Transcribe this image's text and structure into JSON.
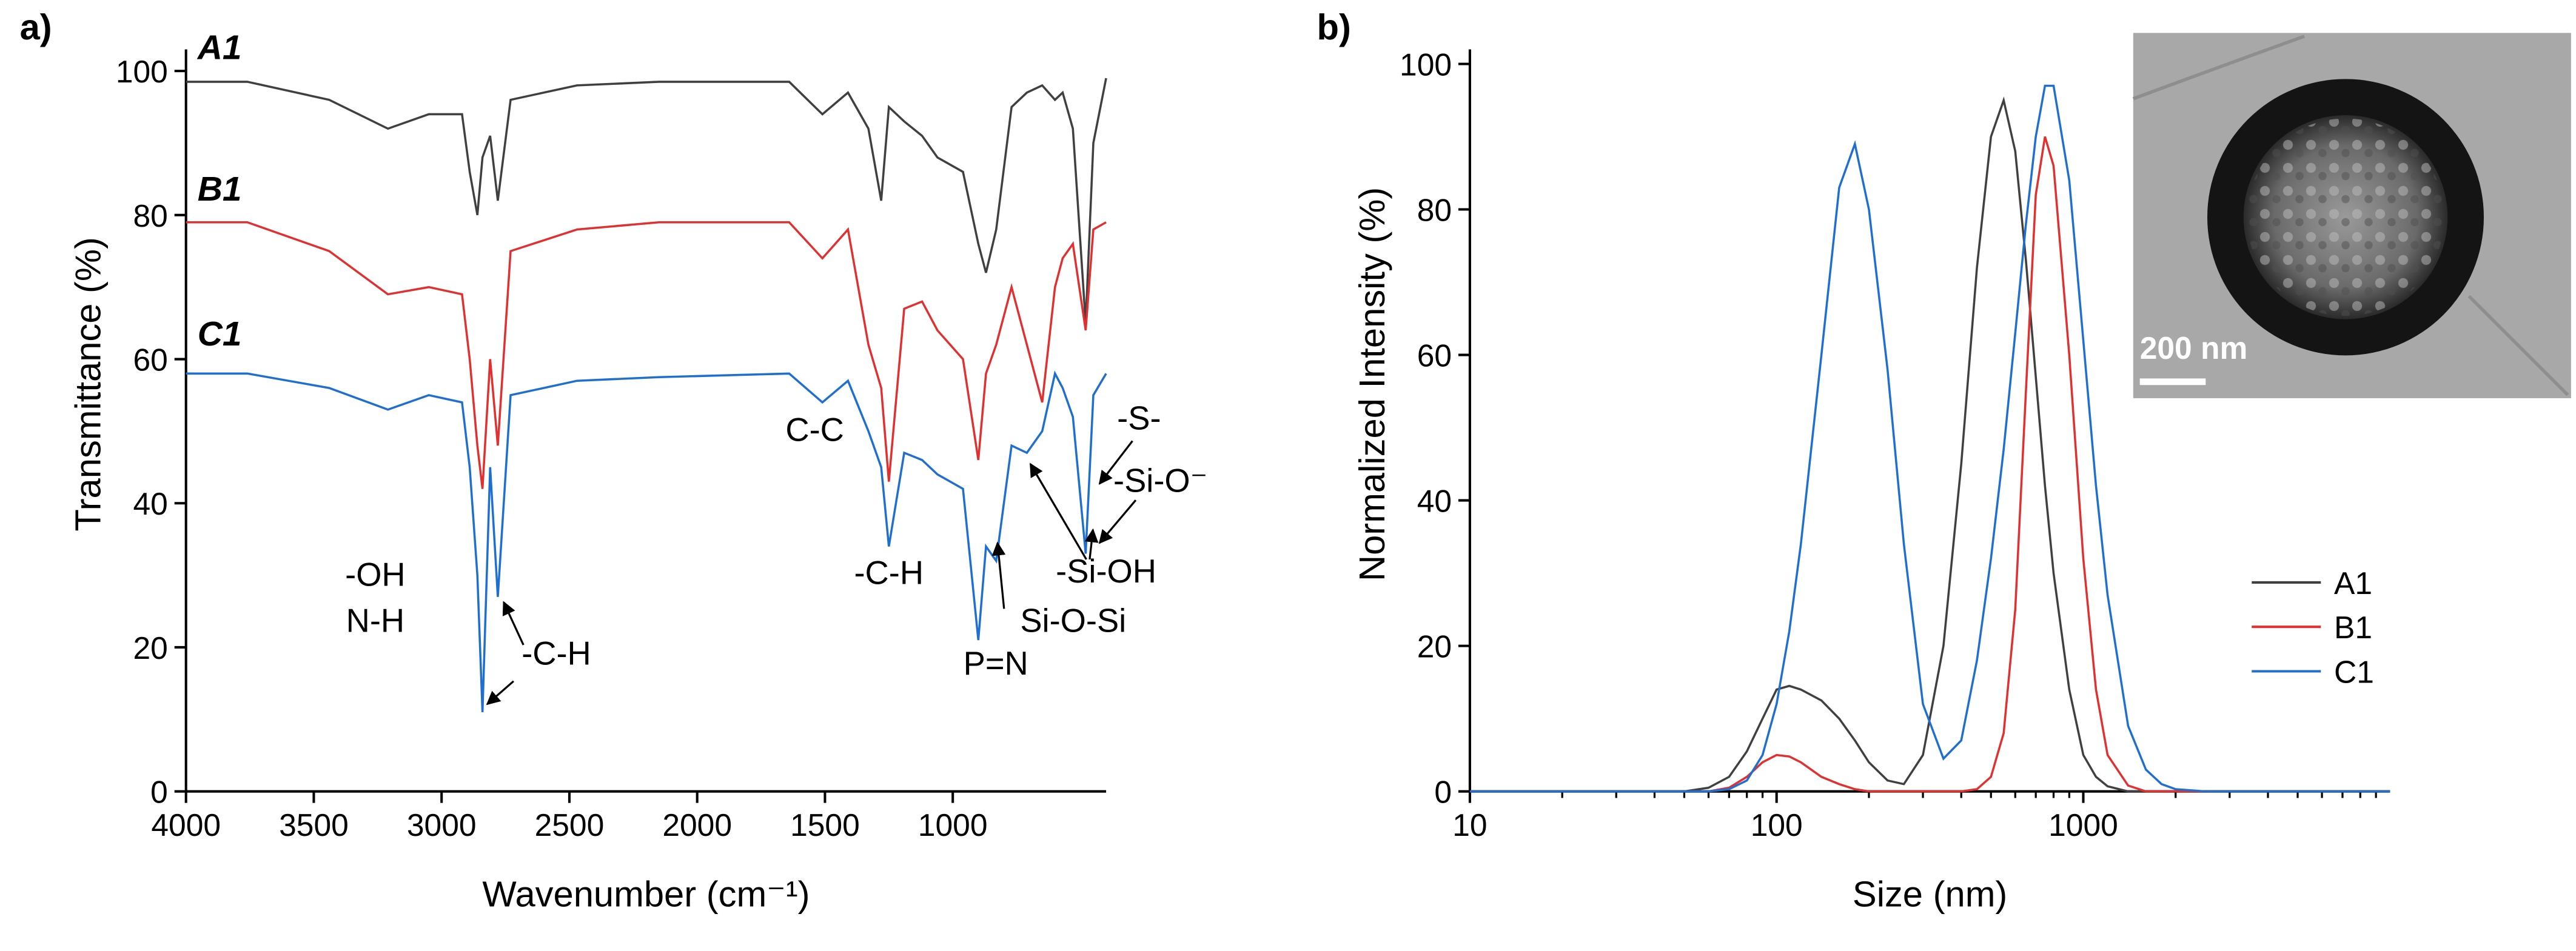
{
  "chart_data": [
    {
      "type": "line",
      "panel_label": "a)",
      "xlabel": "Wavenumber (cm⁻¹)",
      "ylabel": "Transmittance (%)",
      "x": [
        4000,
        3760,
        3440,
        3210,
        3050,
        2920,
        2890,
        2860,
        2840,
        2810,
        2780,
        2730,
        2470,
        2150,
        1640,
        1510,
        1410,
        1330,
        1280,
        1250,
        1190,
        1120,
        1060,
        960,
        900,
        870,
        830,
        770,
        710,
        650,
        600,
        570,
        530,
        480,
        450,
        400
      ],
      "series": [
        {
          "name": "A1",
          "color": "#404040",
          "values": [
            98.5,
            98.5,
            96,
            92,
            94,
            94,
            86,
            80,
            88,
            91,
            82,
            96,
            98,
            98.5,
            98.5,
            94,
            97,
            92,
            82,
            95,
            93,
            91,
            88,
            86,
            76,
            72,
            78,
            95,
            97,
            98,
            96,
            97,
            92,
            65,
            90,
            99
          ]
        },
        {
          "name": "B1",
          "color": "#e03030",
          "values": [
            79,
            79,
            75,
            69,
            70,
            69,
            60,
            48,
            42,
            60,
            48,
            75,
            78,
            79,
            79,
            74,
            78,
            62,
            56,
            43,
            67,
            68,
            64,
            60,
            46,
            58,
            62,
            70,
            62,
            54,
            70,
            74,
            76,
            64,
            78,
            79
          ]
        },
        {
          "name": "C1",
          "color": "#1f6fd0",
          "values": [
            58,
            58,
            56,
            53,
            55,
            54,
            45,
            30,
            11,
            45,
            27,
            55,
            57,
            57.5,
            58,
            54,
            57,
            50,
            45,
            34,
            47,
            46,
            44,
            42,
            21,
            34,
            32,
            48,
            47,
            50,
            58,
            56,
            52,
            33,
            55,
            58
          ]
        }
      ],
      "xlim": [
        4000,
        400
      ],
      "xticks": [
        4000,
        3500,
        3000,
        2500,
        2000,
        1500,
        1000
      ],
      "ylim": [
        0,
        103
      ],
      "yticks": [
        0,
        20,
        40,
        60,
        80,
        100
      ],
      "direct_labels": true,
      "annotations": [
        "-OH",
        "N-H",
        "C-C",
        "-C-H",
        "-C-H",
        "P=N",
        "Si-O-Si",
        "-Si-OH",
        "-Si-O⁻",
        "-S-"
      ]
    },
    {
      "type": "line",
      "panel_label": "b)",
      "xlabel": "Size (nm)",
      "ylabel": "Normalized Intensity (%)",
      "xscale": "log",
      "x": [
        10,
        50,
        60,
        70,
        80,
        90,
        100,
        110,
        120,
        140,
        160,
        180,
        200,
        230,
        260,
        300,
        350,
        400,
        450,
        500,
        550,
        600,
        650,
        700,
        750,
        800,
        900,
        1000,
        1100,
        1200,
        1400,
        1600,
        1800,
        2000,
        2500,
        10000
      ],
      "series": [
        {
          "name": "A1",
          "color": "#404040",
          "values": [
            0,
            0,
            0.5,
            2,
            5.5,
            10,
            14,
            14.5,
            14,
            12.5,
            10,
            7,
            4,
            1.5,
            1,
            5,
            20,
            45,
            72,
            90,
            95,
            88,
            73,
            57,
            42,
            30,
            14,
            5,
            2,
            0.7,
            0,
            0,
            0,
            0,
            0,
            0
          ]
        },
        {
          "name": "B1",
          "color": "#e03030",
          "values": [
            0,
            0,
            0,
            0.5,
            2,
            4,
            5,
            4.8,
            4,
            2,
            1,
            0.3,
            0,
            0,
            0,
            0,
            0,
            0,
            0.3,
            2,
            8,
            25,
            55,
            82,
            90,
            86,
            60,
            32,
            14,
            5,
            0.8,
            0,
            0,
            0,
            0,
            0
          ]
        },
        {
          "name": "C1",
          "color": "#1f6fd0",
          "values": [
            0,
            0,
            0,
            0.3,
            1.5,
            5,
            12,
            22,
            34,
            60,
            83,
            89,
            80,
            58,
            34,
            12,
            4.5,
            7,
            18,
            32,
            47,
            63,
            78,
            90,
            97,
            97,
            84,
            62,
            42,
            27,
            9,
            3,
            1,
            0.3,
            0,
            0
          ]
        }
      ],
      "xlim": [
        10,
        10000
      ],
      "xticks": [
        10,
        100,
        1000
      ],
      "xminorticks": [
        20,
        30,
        40,
        50,
        60,
        70,
        80,
        90,
        200,
        300,
        400,
        500,
        600,
        700,
        800,
        900,
        2000,
        3000,
        4000,
        5000,
        6000,
        7000,
        8000,
        9000
      ],
      "ylim": [
        0,
        102
      ],
      "yticks": [
        0,
        20,
        40,
        60,
        80,
        100
      ],
      "legend": "right",
      "inset": {
        "scale_label": "200 nm"
      }
    }
  ]
}
